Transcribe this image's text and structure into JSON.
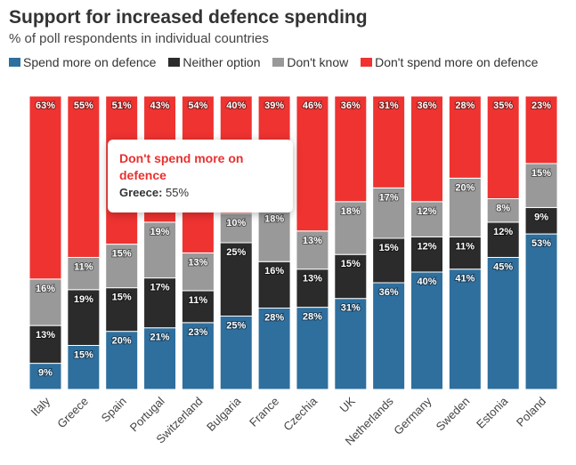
{
  "header": {
    "title": "Support for increased defence spending",
    "subtitle": "% of poll respondents in individual countries"
  },
  "tooltip": {
    "title": "Don't spend more on defence",
    "label": "Greece:",
    "value": "55%"
  },
  "chart_data": {
    "type": "bar",
    "stacked": true,
    "categories": [
      "Italy",
      "Greece",
      "Spain",
      "Portugal",
      "Switzerland",
      "Bulgaria",
      "France",
      "Czechia",
      "UK",
      "Netherlands",
      "Germany",
      "Sweden",
      "Estonia",
      "Poland"
    ],
    "series": [
      {
        "name": "Spend more on defence",
        "color": "#2e6f9e",
        "values": [
          9,
          15,
          20,
          21,
          23,
          25,
          28,
          28,
          31,
          36,
          40,
          41,
          45,
          53
        ]
      },
      {
        "name": "Neither option",
        "color": "#2b2b2b",
        "values": [
          13,
          19,
          15,
          17,
          11,
          25,
          16,
          13,
          15,
          15,
          12,
          11,
          12,
          9
        ]
      },
      {
        "name": "Don't know",
        "color": "#999999",
        "values": [
          16,
          11,
          15,
          19,
          13,
          10,
          18,
          13,
          18,
          17,
          12,
          20,
          8,
          15
        ]
      },
      {
        "name": "Don't spend more on defence",
        "color": "#ee3331",
        "values": [
          63,
          55,
          51,
          43,
          54,
          40,
          39,
          46,
          36,
          31,
          36,
          28,
          35,
          23
        ]
      }
    ],
    "label_suffix": "%",
    "ylim": [
      0,
      100
    ],
    "grid": false,
    "legend_position": "top-left",
    "x_tick_rotation": -45
  }
}
